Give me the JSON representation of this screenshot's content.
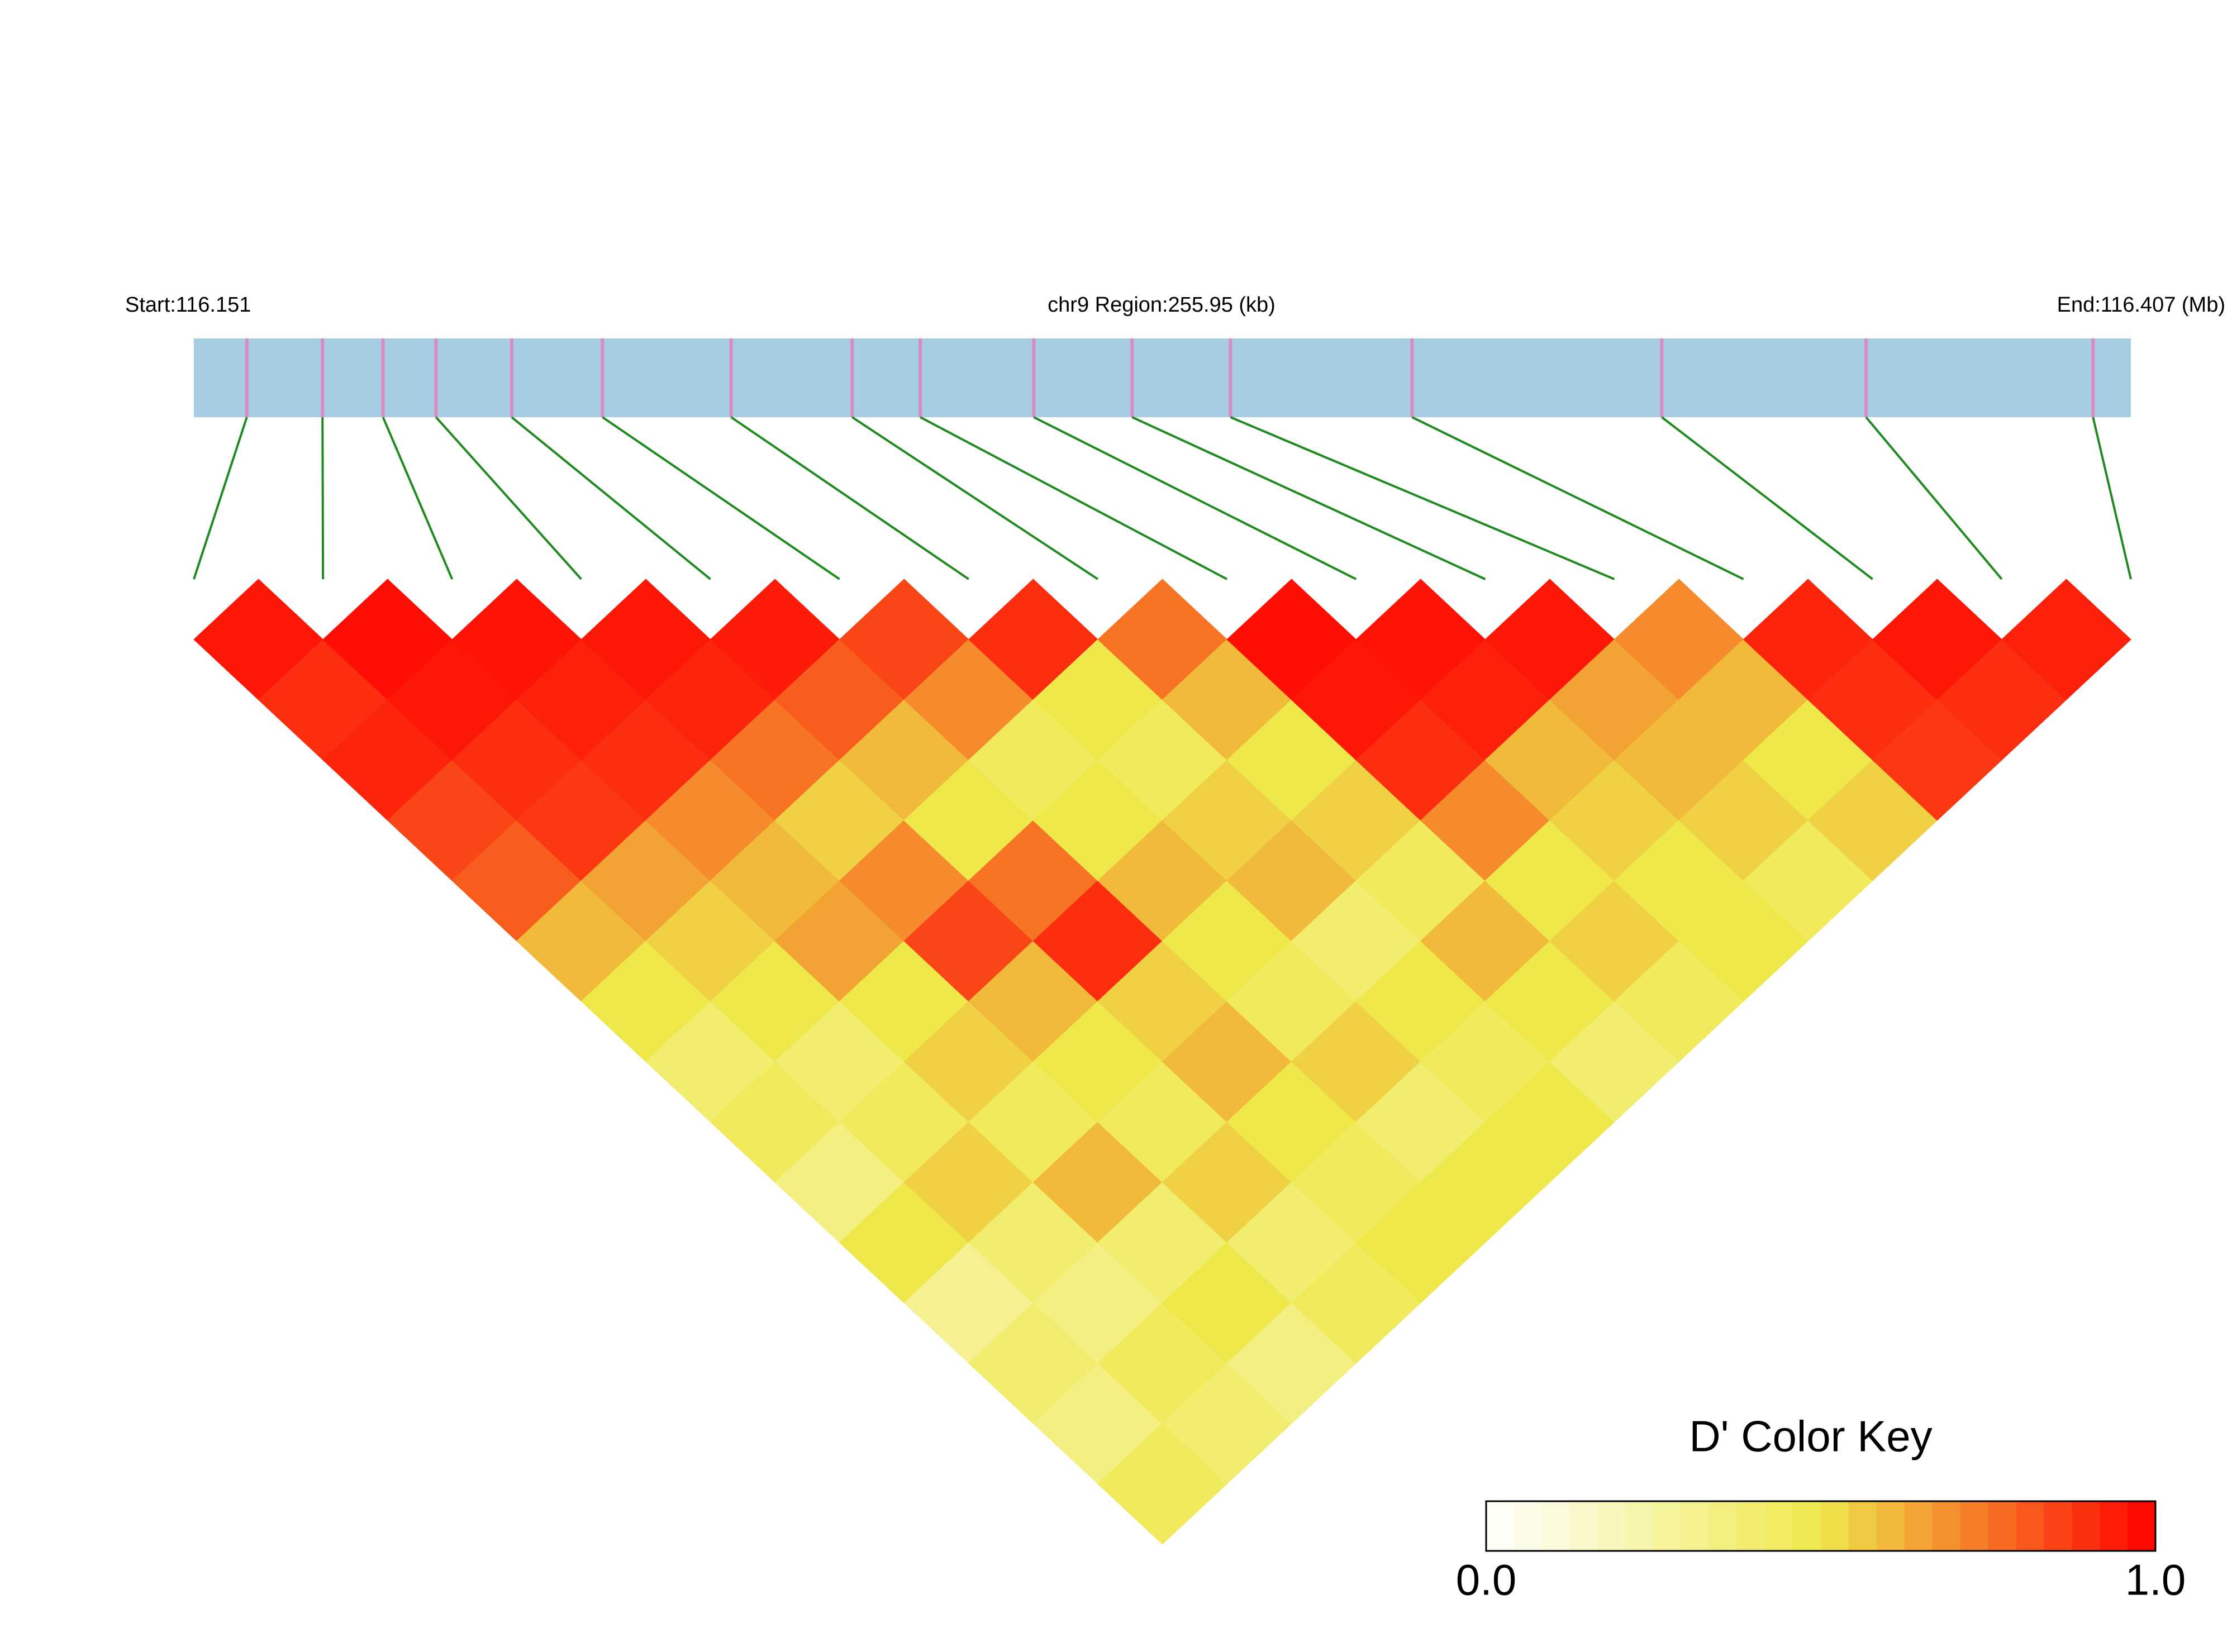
{
  "chart_data": {
    "type": "ld-heatmap",
    "start_label": "Start:116.151",
    "region_label": "chr9 Region:255.95 (kb)",
    "end_label": "End:116.407 (Mb)",
    "xlim": [
      116.151,
      116.407
    ],
    "snp_positions": [
      116.158,
      116.168,
      116.176,
      116.183,
      116.193,
      116.205,
      116.222,
      116.238,
      116.247,
      116.262,
      116.275,
      116.288,
      116.312,
      116.345,
      116.372,
      116.402
    ],
    "dprime": [
      [
        0.95,
        0.9,
        0.92,
        0.85,
        0.8,
        0.6,
        0.5,
        0.4,
        0.45,
        0.35,
        0.5,
        0.3,
        0.4,
        0.35,
        0.45
      ],
      [
        0.97,
        0.95,
        0.9,
        0.88,
        0.65,
        0.55,
        0.5,
        0.4,
        0.45,
        0.55,
        0.4,
        0.35,
        0.45,
        0.4
      ],
      [
        0.96,
        0.93,
        0.9,
        0.7,
        0.6,
        0.65,
        0.5,
        0.55,
        0.45,
        0.6,
        0.4,
        0.5,
        0.35
      ],
      [
        0.95,
        0.92,
        0.75,
        0.55,
        0.7,
        0.85,
        0.6,
        0.5,
        0.45,
        0.55,
        0.4,
        0.45
      ],
      [
        0.94,
        0.8,
        0.6,
        0.5,
        0.75,
        0.9,
        0.55,
        0.6,
        0.5,
        0.45,
        0.5
      ],
      [
        0.85,
        0.7,
        0.45,
        0.5,
        0.6,
        0.5,
        0.45,
        0.55,
        0.4,
        0.5
      ],
      [
        0.9,
        0.5,
        0.45,
        0.55,
        0.6,
        0.4,
        0.5,
        0.45,
        0.5
      ],
      [
        0.75,
        0.6,
        0.5,
        0.55,
        0.45,
        0.6,
        0.5,
        0.4
      ],
      [
        0.97,
        0.95,
        0.9,
        0.7,
        0.5,
        0.55,
        0.45
      ],
      [
        0.96,
        0.93,
        0.6,
        0.55,
        0.5,
        0.5
      ],
      [
        0.95,
        0.65,
        0.6,
        0.55,
        0.45
      ],
      [
        0.7,
        0.6,
        0.5,
        0.55
      ],
      [
        0.92,
        0.9,
        0.88
      ],
      [
        0.95,
        0.9
      ],
      [
        0.93
      ]
    ],
    "bar_color": "#a6cde3",
    "snp_color": "#d98cc4",
    "line_color": "#1f8a1f",
    "color_stops": [
      "#ffffff",
      "#eee84a",
      "#ff0000"
    ],
    "key_title": "D' Color Key",
    "key_ticks": [
      {
        "value": 0,
        "label": "0.0"
      },
      {
        "value": 1,
        "label": "1.0"
      }
    ]
  }
}
